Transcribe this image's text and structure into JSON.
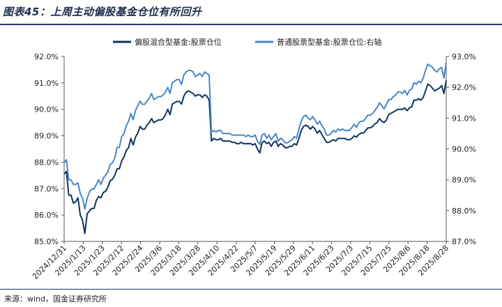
{
  "title": "图表45：上周主动偏股基金仓位有所回升",
  "source": "来源：wind，国金证券研究所",
  "chart_data": {
    "type": "line",
    "legend_position": "top-center",
    "grid": false,
    "y_left": {
      "min": 85.0,
      "max": 92.0,
      "ticks": [
        "85.0%",
        "86.0%",
        "87.0%",
        "88.0%",
        "89.0%",
        "90.0%",
        "91.0%",
        "92.0%"
      ]
    },
    "y_right": {
      "min": 87.0,
      "max": 93.0,
      "ticks": [
        "87.0%",
        "88.0%",
        "89.0%",
        "90.0%",
        "91.0%",
        "92.0%",
        "93.0%"
      ]
    },
    "x_ticks": [
      "2024/12/31",
      "2025/1/13",
      "2025/1/23",
      "2025/2/12",
      "2025/2/24",
      "2025/3/6",
      "2025/3/18",
      "2025/3/28",
      "2025/4/10",
      "2025/4/22",
      "2025/5/7",
      "2025/5/19",
      "2025/5/29",
      "2025/6/11",
      "2025/6/23",
      "2025/7/3",
      "2025/7/15",
      "2025/7/25",
      "2025/8/6",
      "2025/8/18",
      "2025/8/28"
    ],
    "series": [
      {
        "name": "偏股混合型基金:股票仓位",
        "axis": "left",
        "color": "#0d3560",
        "values": [
          87.55,
          87.65,
          86.75,
          86.75,
          86.45,
          86.5,
          86.65,
          86.0,
          85.8,
          85.3,
          86.05,
          86.15,
          86.25,
          86.25,
          86.55,
          86.7,
          86.65,
          86.85,
          86.9,
          87.05,
          87.3,
          87.35,
          87.5,
          87.75,
          87.75,
          88.05,
          88.2,
          88.45,
          88.55,
          88.9,
          88.65,
          88.95,
          89.1,
          89.35,
          89.25,
          89.25,
          89.4,
          89.5,
          89.65,
          89.5,
          89.55,
          89.6,
          89.6,
          89.65,
          89.8,
          90.0,
          89.8,
          90.2,
          90.25,
          90.3,
          90.3,
          90.2,
          90.5,
          90.65,
          90.7,
          90.65,
          90.6,
          90.5,
          90.55,
          90.55,
          90.45,
          90.55,
          90.5,
          90.35,
          88.8,
          88.9,
          88.85,
          88.85,
          88.9,
          88.8,
          88.8,
          88.8,
          88.8,
          88.75,
          88.75,
          88.7,
          88.7,
          88.75,
          88.7,
          88.7,
          88.7,
          88.7,
          88.65,
          88.7,
          88.5,
          88.35,
          88.75,
          88.8,
          88.7,
          88.75,
          88.6,
          88.75,
          88.8,
          88.6,
          88.7,
          88.65,
          88.55,
          88.55,
          88.6,
          88.6,
          88.7,
          88.65,
          88.9,
          89.2,
          89.35,
          89.4,
          89.35,
          89.25,
          89.35,
          89.25,
          89.1,
          89.2,
          89.05,
          88.9,
          88.75,
          88.75,
          88.8,
          88.85,
          88.8,
          88.9,
          88.9,
          88.9,
          88.9,
          88.85,
          88.85,
          88.9,
          89.0,
          88.95,
          89.05,
          89.1,
          89.1,
          89.2,
          89.3,
          89.3,
          89.35,
          89.45,
          89.5,
          89.65,
          89.55,
          89.5,
          89.6,
          89.8,
          89.85,
          89.9,
          89.95,
          90.0,
          90.0,
          90.0,
          90.05,
          89.95,
          90.05,
          90.1,
          90.35,
          90.35,
          90.4,
          90.35,
          90.45,
          90.7,
          90.95,
          90.9,
          90.8,
          90.7,
          90.75,
          90.8,
          90.9,
          90.6,
          91.1
        ]
      },
      {
        "name": "普通股票型基金:股票仓位:右轴",
        "axis": "right",
        "color": "#4a86c5",
        "values": [
          89.55,
          89.65,
          89.0,
          89.0,
          88.85,
          88.85,
          88.9,
          88.55,
          88.4,
          88.05,
          88.4,
          88.6,
          88.7,
          88.7,
          88.85,
          89.0,
          88.85,
          89.05,
          89.15,
          89.25,
          89.5,
          89.55,
          89.7,
          90.05,
          90.05,
          90.4,
          90.5,
          90.75,
          90.9,
          91.15,
          90.95,
          91.25,
          91.4,
          91.55,
          91.45,
          91.45,
          91.55,
          91.65,
          91.8,
          91.6,
          91.65,
          91.7,
          91.7,
          91.75,
          91.85,
          92.0,
          91.8,
          92.15,
          92.2,
          92.25,
          92.25,
          92.1,
          92.4,
          92.5,
          92.55,
          92.55,
          92.5,
          92.35,
          92.4,
          92.45,
          92.35,
          92.5,
          92.45,
          92.4,
          90.55,
          90.6,
          90.55,
          90.6,
          90.6,
          90.5,
          90.5,
          90.5,
          90.5,
          90.45,
          90.45,
          90.45,
          90.45,
          90.45,
          90.45,
          90.4,
          90.45,
          90.4,
          90.4,
          90.45,
          90.25,
          90.15,
          90.45,
          90.5,
          90.35,
          90.45,
          90.3,
          90.4,
          90.5,
          90.25,
          90.35,
          90.3,
          90.2,
          90.2,
          90.25,
          90.3,
          90.4,
          90.35,
          90.65,
          90.9,
          91.05,
          91.1,
          91.0,
          90.95,
          91.05,
          90.95,
          90.8,
          90.9,
          90.75,
          90.65,
          90.45,
          90.45,
          90.5,
          90.6,
          90.55,
          90.65,
          90.6,
          90.65,
          90.6,
          90.6,
          90.6,
          90.7,
          90.8,
          90.7,
          90.85,
          90.9,
          90.9,
          91.0,
          91.1,
          91.1,
          91.15,
          91.25,
          91.35,
          91.5,
          91.4,
          91.3,
          91.45,
          91.6,
          91.6,
          91.7,
          91.75,
          91.85,
          91.85,
          91.8,
          91.9,
          91.75,
          91.9,
          91.95,
          92.15,
          92.1,
          92.2,
          92.15,
          92.3,
          92.55,
          92.75,
          92.7,
          92.65,
          92.55,
          92.5,
          92.6,
          92.65,
          92.3,
          92.8
        ]
      }
    ]
  }
}
